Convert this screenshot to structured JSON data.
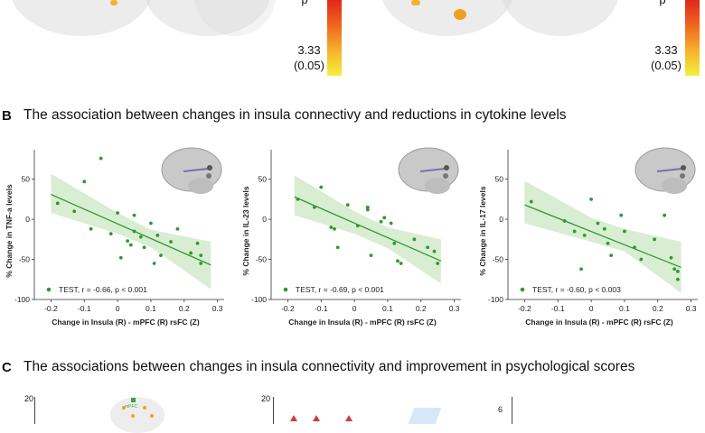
{
  "panel_a": {
    "colorbar_left": {
      "value": "3.33",
      "p": "(0.05)",
      "top_value": "p"
    },
    "colorbar_right": {
      "value": "3.33",
      "p": "(0.05)",
      "top_value": "p"
    }
  },
  "section_b": {
    "letter": "B",
    "title": "The association between changes in insula connectivy and reductions in cytokine levels"
  },
  "section_c": {
    "letter": "C",
    "title": "The associations between changes in insula connectivity and improvement in psychological scores"
  },
  "panel_c": {
    "ytick_1": "20",
    "ytick_2": "20",
    "ytick_3": "6",
    "tiny_label": "mPFC"
  },
  "colors": {
    "points": "#2d9a2d",
    "line": "#2f9a2f",
    "band": "#cfe8c8"
  },
  "chart_data": [
    {
      "type": "scatter",
      "ylabel": "% Change in TNF-a levels",
      "xlabel": "Change in Insula (R) - mPFC (R) rsFC (Z)",
      "xlim": [
        -0.25,
        0.32
      ],
      "ylim": [
        -100,
        80
      ],
      "xticks": [
        -0.2,
        -0.1,
        0,
        0.1,
        0.2,
        0.3
      ],
      "xtick_labels": [
        "-0.2",
        "-0.1",
        "0",
        "0.1",
        "0.2",
        "0.3"
      ],
      "yticks": [
        50,
        0,
        -50,
        -100
      ],
      "ytick_labels": [
        "50",
        "0",
        "-50",
        "-100"
      ],
      "legend": "TEST, r = -0.66, p < 0.001",
      "fit": {
        "x": [
          -0.2,
          0.28
        ],
        "y": [
          31,
          -57
        ]
      },
      "band": {
        "x": [
          -0.2,
          0.0,
          0.1,
          0.28
        ],
        "upper": [
          57,
          8,
          -13,
          -28
        ],
        "lower": [
          8,
          -18,
          -35,
          -87
        ]
      },
      "points": [
        [
          -0.18,
          20
        ],
        [
          -0.13,
          10
        ],
        [
          -0.1,
          47
        ],
        [
          -0.08,
          -12
        ],
        [
          -0.05,
          76
        ],
        [
          -0.02,
          -18
        ],
        [
          0.0,
          8
        ],
        [
          0.01,
          -48
        ],
        [
          0.03,
          -27
        ],
        [
          0.04,
          -32
        ],
        [
          0.05,
          5
        ],
        [
          0.05,
          -15
        ],
        [
          0.07,
          -22
        ],
        [
          0.08,
          -35
        ],
        [
          0.1,
          -5
        ],
        [
          0.11,
          -55
        ],
        [
          0.12,
          -20
        ],
        [
          0.13,
          -45
        ],
        [
          0.16,
          -28
        ],
        [
          0.18,
          -12
        ],
        [
          0.22,
          -42
        ],
        [
          0.24,
          -30
        ],
        [
          0.25,
          -45
        ],
        [
          0.25,
          -55
        ]
      ]
    },
    {
      "type": "scatter",
      "ylabel": "% Change in IL-23 levels",
      "xlabel": "Change in Insula (R) - mPFC (R) rsFC (Z)",
      "xlim": [
        -0.25,
        0.32
      ],
      "ylim": [
        -100,
        80
      ],
      "xticks": [
        -0.2,
        -0.1,
        0,
        0.1,
        0.2,
        0.3
      ],
      "xtick_labels": [
        "-0.2",
        "-0.1",
        "0",
        "0.1",
        "0.2",
        "0.3"
      ],
      "yticks": [
        50,
        0,
        -50,
        -100
      ],
      "ytick_labels": [
        "50",
        "0",
        "-50",
        "-100"
      ],
      "legend": "TEST, r = -0.69, p < 0.001",
      "fit": {
        "x": [
          -0.18,
          0.26
        ],
        "y": [
          28,
          -52
        ]
      },
      "band": {
        "x": [
          -0.18,
          0.0,
          0.1,
          0.26
        ],
        "upper": [
          55,
          10,
          -10,
          -25
        ],
        "lower": [
          5,
          -18,
          -36,
          -80
        ]
      },
      "points": [
        [
          -0.17,
          25
        ],
        [
          -0.12,
          15
        ],
        [
          -0.1,
          40
        ],
        [
          -0.07,
          -10
        ],
        [
          -0.06,
          -12
        ],
        [
          -0.05,
          -35
        ],
        [
          -0.02,
          18
        ],
        [
          0.01,
          -8
        ],
        [
          0.04,
          15
        ],
        [
          0.04,
          12
        ],
        [
          0.05,
          -45
        ],
        [
          0.08,
          -3
        ],
        [
          0.09,
          2
        ],
        [
          0.11,
          -5
        ],
        [
          0.12,
          -30
        ],
        [
          0.13,
          -52
        ],
        [
          0.14,
          -55
        ],
        [
          0.18,
          -25
        ],
        [
          0.22,
          -35
        ],
        [
          0.24,
          -40
        ],
        [
          0.25,
          -55
        ]
      ]
    },
    {
      "type": "scatter",
      "ylabel": "% Change in IL-17 levels",
      "xlabel": "Change in Insula (R) - mPFC (R) rsFC (Z)",
      "xlim": [
        -0.25,
        0.32
      ],
      "ylim": [
        -100,
        80
      ],
      "xticks": [
        -0.2,
        -0.1,
        0,
        0.1,
        0.2,
        0.3
      ],
      "xtick_labels": [
        "-0.2",
        "-0.1",
        "0",
        "0.1",
        "0.2",
        "0.3"
      ],
      "yticks": [
        50,
        0,
        -50,
        -100
      ],
      "ytick_labels": [
        "50",
        "0",
        "-50",
        "-100"
      ],
      "legend": "TEST, r = -0.60, p < 0.003",
      "fit": {
        "x": [
          -0.2,
          0.27
        ],
        "y": [
          18,
          -60
        ]
      },
      "band": {
        "x": [
          -0.2,
          0.0,
          0.1,
          0.27
        ],
        "upper": [
          48,
          2,
          -12,
          -28
        ],
        "lower": [
          -5,
          -28,
          -40,
          -92
        ]
      },
      "points": [
        [
          -0.18,
          22
        ],
        [
          -0.08,
          -2
        ],
        [
          -0.05,
          -15
        ],
        [
          -0.03,
          -62
        ],
        [
          -0.02,
          -20
        ],
        [
          0.0,
          25
        ],
        [
          0.02,
          -5
        ],
        [
          0.04,
          -12
        ],
        [
          0.05,
          -30
        ],
        [
          0.06,
          -45
        ],
        [
          0.09,
          5
        ],
        [
          0.1,
          -15
        ],
        [
          0.13,
          -35
        ],
        [
          0.15,
          -50
        ],
        [
          0.19,
          -25
        ],
        [
          0.22,
          5
        ],
        [
          0.24,
          -48
        ],
        [
          0.25,
          -62
        ],
        [
          0.26,
          -65
        ],
        [
          0.26,
          -75
        ]
      ]
    }
  ]
}
